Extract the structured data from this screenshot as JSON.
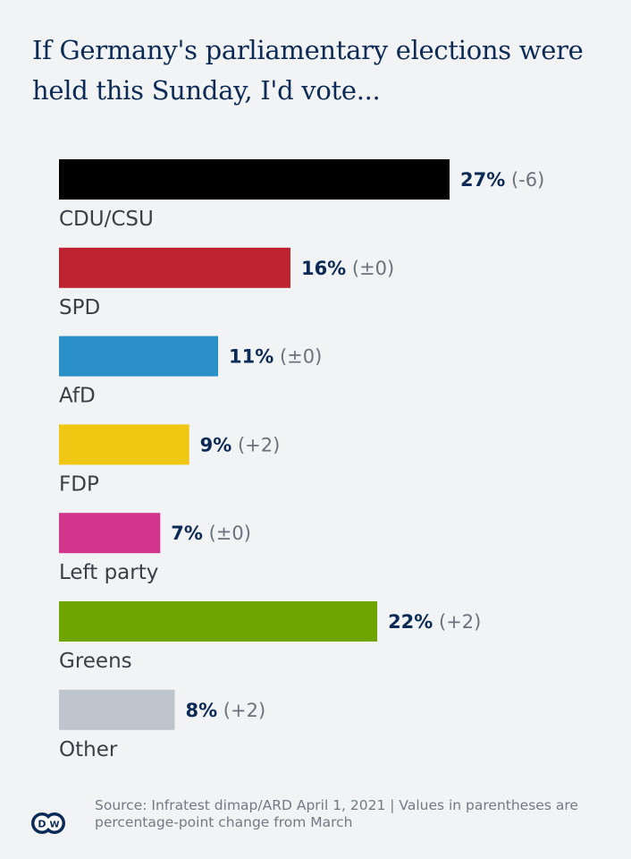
{
  "chart_data": {
    "type": "bar",
    "orientation": "horizontal",
    "title": "If Germany's parliamentary elections were held this Sunday, I'd vote...",
    "unit": "%",
    "categories": [
      "CDU/CSU",
      "SPD",
      "AfD",
      "FDP",
      "Left party",
      "Greens",
      "Other"
    ],
    "values": [
      27,
      16,
      11,
      9,
      7,
      22,
      8
    ],
    "value_labels": [
      "27%",
      "16%",
      "11%",
      "9%",
      "7%",
      "22%",
      "8%"
    ],
    "changes": [
      "(-6)",
      "(±0)",
      "(±0)",
      "(+2)",
      "(±0)",
      "(+2)",
      "(+2)"
    ],
    "colors": [
      "#000000",
      "#be2230",
      "#2b8fc8",
      "#f0c814",
      "#d1368c",
      "#6ea500",
      "#bec5cc"
    ],
    "xlim": [
      0,
      27
    ],
    "grid": false,
    "legend": "none"
  },
  "footer": {
    "source": "Source: Infratest dimap/ARD April 1, 2021 | Values in parentheses are percentage-point change from March",
    "logo_text": "DW"
  }
}
